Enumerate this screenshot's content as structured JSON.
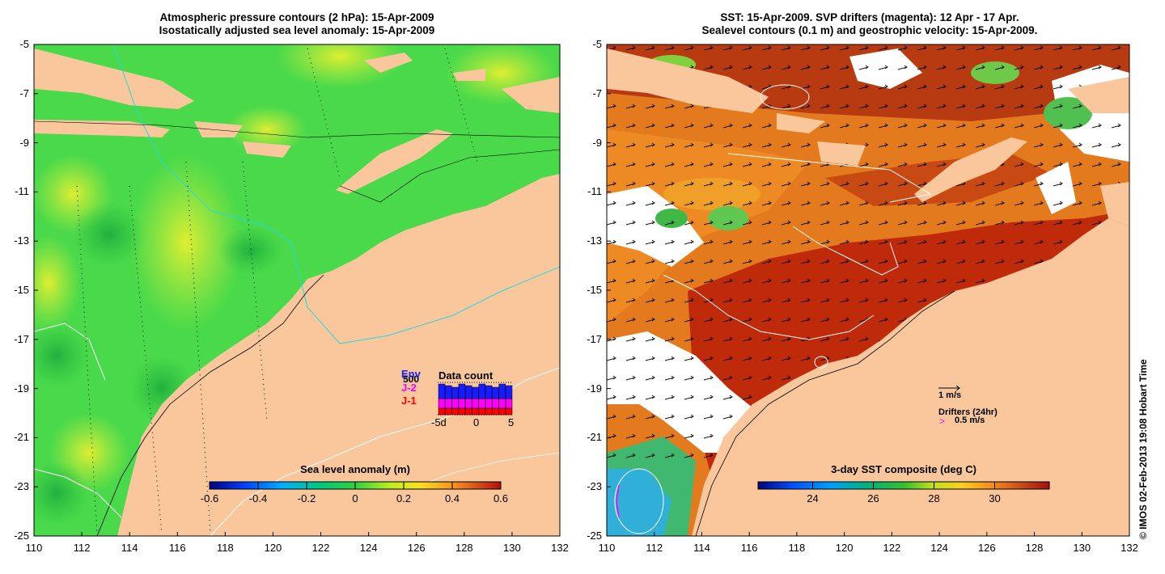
{
  "left_panel": {
    "title_line1": "Atmospheric pressure contours (2 hPa): 15-Apr-2009",
    "title_line2": "Isostatically adjusted sea level anomaly: 15-Apr-2009",
    "x_ticks": [
      "110",
      "112",
      "114",
      "116",
      "118",
      "120",
      "122",
      "124",
      "126",
      "128",
      "130",
      "132"
    ],
    "y_ticks": [
      "-5",
      "-7",
      "-9",
      "-11",
      "-13",
      "-15",
      "-17",
      "-19",
      "-21",
      "-23",
      "-25"
    ],
    "colorbar": {
      "label": "Sea level anomaly (m)",
      "ticks": [
        "-0.6",
        "-0.4",
        "-0.2",
        "0",
        "0.2",
        "0.4",
        "0.6"
      ],
      "range": [
        -0.6,
        0.6
      ]
    },
    "data_count": {
      "title": "Data count",
      "sources": [
        {
          "name": "Env",
          "color": "#1a1aff"
        },
        {
          "name": "J-2",
          "color": "#ff00ff"
        },
        {
          "name": "J-1",
          "color": "#ff0000"
        }
      ],
      "max_label": "500",
      "x_ticks": [
        "-5d",
        "0",
        "5"
      ]
    }
  },
  "right_panel": {
    "title_line1": "SST: 15-Apr-2009. SVP drifters (magenta): 12 Apr - 17 Apr.",
    "title_line2": "Sealevel contours (0.1 m) and geostrophic velocity: 15-Apr-2009.",
    "x_ticks": [
      "110",
      "112",
      "114",
      "116",
      "118",
      "120",
      "122",
      "124",
      "126",
      "128",
      "130",
      "132"
    ],
    "y_ticks": [
      "-5",
      "-7",
      "-9",
      "-11",
      "-13",
      "-15",
      "-17",
      "-19",
      "-21",
      "-23",
      "-25"
    ],
    "colorbar": {
      "label": "3-day SST composite (deg C)",
      "ticks": [
        "24",
        "26",
        "28",
        "30"
      ],
      "range": [
        22.2,
        31.8
      ]
    },
    "legend": {
      "velocity_label": "1 m/s",
      "drifters_label": "Drifters (24hr)",
      "drifter_speed_label": "0.5 m/s",
      "drifter_marker": ">"
    }
  },
  "credit": "© IMOS 02-Feb-2013 19:08 Hobart Time",
  "colors": {
    "land": "#f9c79b",
    "sla_green": "#49d94a",
    "sst_red": "#bf2a0a",
    "contour_cyan": "#22d8e6",
    "drifter": "#ff00ff"
  }
}
